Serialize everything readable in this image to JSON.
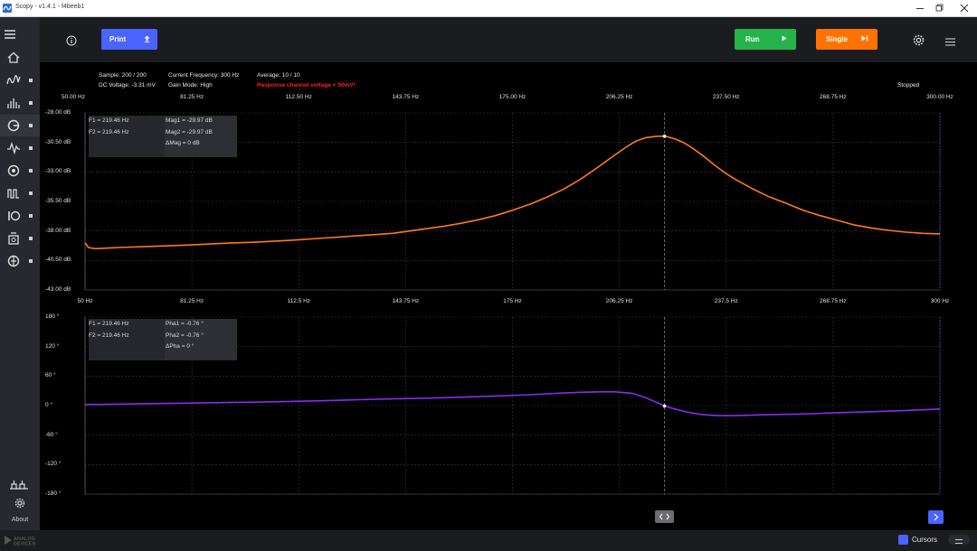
{
  "window": {
    "title": "Scopy - v1.4.1 - f4beeb1"
  },
  "toolbar": {
    "print_label": "Print",
    "run_label": "Run",
    "single_label": "Single",
    "colors": {
      "print": "#4a64ff",
      "run": "#27b34b",
      "single": "#ff7200"
    }
  },
  "sidebar": {
    "items": [
      {
        "icon": "home-icon"
      },
      {
        "icon": "oscilloscope-icon"
      },
      {
        "icon": "spectrum-analyzer-icon"
      },
      {
        "icon": "network-analyzer-icon"
      },
      {
        "icon": "signal-generator-icon"
      },
      {
        "icon": "voltmeter-icon"
      },
      {
        "icon": "pattern-generator-icon"
      },
      {
        "icon": "digital-io-icon"
      },
      {
        "icon": "power-supply-icon"
      },
      {
        "icon": "logic-analyzer-icon"
      }
    ],
    "about_label": "About"
  },
  "status": {
    "sample": "Sample: 200 / 200",
    "current_frequency": "Current Frequency: 300 Hz",
    "average": "Average: 10 / 10",
    "dc_voltage": "DC Voltage: -3.31 mV",
    "gain_mode": "Gain Mode: High",
    "warning": "Response channel voltage < 50mV!",
    "run_state": "Stopped"
  },
  "magnitude_cursors": {
    "f1": "F1 =  219.46 Hz",
    "f2": "F2 =  219.46 Hz",
    "mag1": "Mag1 =  -29.97 dB",
    "mag2": "Mag2 =  -29.97 dB",
    "dmag": "ΔMag =  0 dB"
  },
  "phase_cursors": {
    "f1": "F1 =  219.46 Hz",
    "f2": "F2 =  219.46 Hz",
    "pha1": "Pha1 =  -0.76 °",
    "pha2": "Pha2 =  -0.76 °",
    "dpha": "ΔPha =  0 °"
  },
  "bottom": {
    "cursors_label": "Cursors",
    "cursors_enabled": true
  },
  "chart_data": [
    {
      "type": "line",
      "title": "",
      "xlabel": "",
      "ylabel": "",
      "x_tick_labels_top": [
        "50.00 Hz",
        "81.25 Hz",
        "112.50 Hz",
        "143.75 Hz",
        "175.00 Hz",
        "206.25 Hz",
        "237.50 Hz",
        "268.75 Hz",
        "300.00 Hz"
      ],
      "x_tick_labels": [
        "50 Hz",
        "81.25 Hz",
        "112.5 Hz",
        "143.75 Hz",
        "175 Hz",
        "206.25 Hz",
        "237.5 Hz",
        "268.75 Hz",
        "300 Hz"
      ],
      "y_tick_labels": [
        "-28.00 dB",
        "-30.50 dB",
        "-33.00 dB",
        "-35.50 dB",
        "-38.00 dB",
        "-40.50 dB",
        "-43.00 dB"
      ],
      "xlim": [
        50,
        300
      ],
      "ylim": [
        -43,
        -28
      ],
      "grid": true,
      "color": "#ff7a1a",
      "series": [
        {
          "x": [
            50,
            51,
            53,
            57,
            60,
            70,
            80,
            90,
            100,
            110,
            120,
            130,
            140,
            145,
            150,
            155,
            160,
            165,
            170,
            175,
            180,
            185,
            190,
            195,
            200,
            205,
            208,
            211,
            214,
            217,
            219.46,
            222,
            225,
            228,
            231,
            234,
            237,
            240,
            245,
            250,
            255,
            260,
            265,
            270,
            275,
            280,
            285,
            290,
            295,
            300
          ],
          "y": [
            -39.0,
            -39.4,
            -39.5,
            -39.45,
            -39.4,
            -39.3,
            -39.2,
            -39.05,
            -38.95,
            -38.8,
            -38.6,
            -38.4,
            -38.2,
            -38.0,
            -37.8,
            -37.6,
            -37.35,
            -37.05,
            -36.7,
            -36.25,
            -35.75,
            -35.15,
            -34.45,
            -33.6,
            -32.6,
            -31.55,
            -30.95,
            -30.4,
            -30.1,
            -29.98,
            -29.97,
            -30.15,
            -30.5,
            -31.05,
            -31.7,
            -32.4,
            -33.05,
            -33.6,
            -34.4,
            -35.1,
            -35.65,
            -36.25,
            -36.7,
            -37.1,
            -37.5,
            -37.75,
            -37.95,
            -38.1,
            -38.2,
            -38.25
          ]
        }
      ]
    },
    {
      "type": "line",
      "title": "",
      "xlabel": "",
      "ylabel": "",
      "x_tick_labels": [],
      "y_tick_labels": [
        "180 °",
        "120 °",
        "60 °",
        "0 °",
        "-60 °",
        "-120 °",
        "-180 °"
      ],
      "xlim": [
        50,
        300
      ],
      "ylim": [
        -180,
        180
      ],
      "grid": true,
      "color": "#8a2bf0",
      "series": [
        {
          "x": [
            50,
            60,
            70,
            80,
            90,
            100,
            110,
            120,
            130,
            140,
            150,
            160,
            170,
            180,
            190,
            195,
            200,
            205,
            210,
            214,
            219.46,
            222,
            226,
            230,
            235,
            240,
            245,
            250,
            260,
            270,
            280,
            290,
            300
          ],
          "y": [
            2,
            3,
            4,
            5,
            6,
            7,
            8.5,
            10,
            12,
            13.5,
            15,
            17,
            19.5,
            22,
            25.5,
            27,
            28,
            28,
            25,
            16,
            -0.76,
            -6,
            -13,
            -18,
            -20.5,
            -20.5,
            -19.5,
            -18.5,
            -17,
            -14.5,
            -12.5,
            -10,
            -7
          ]
        }
      ]
    }
  ]
}
